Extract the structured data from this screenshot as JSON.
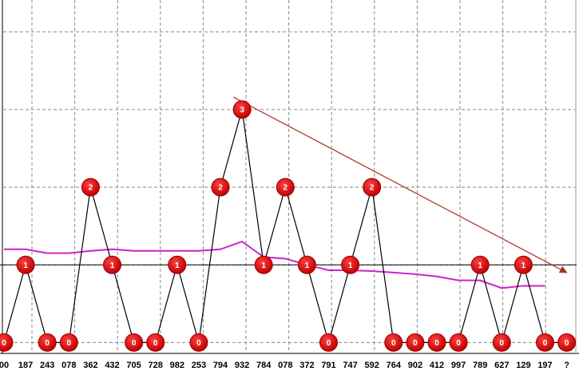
{
  "chart_data": {
    "type": "line",
    "categories": [
      "00",
      "187",
      "243",
      "078",
      "362",
      "432",
      "705",
      "728",
      "982",
      "253",
      "794",
      "932",
      "784",
      "078",
      "372",
      "791",
      "747",
      "592",
      "764",
      "902",
      "412",
      "997",
      "789",
      "627",
      "129",
      "197",
      "?"
    ],
    "ylim": [
      -0.12,
      4.41
    ],
    "yticks": [
      0,
      1,
      2,
      3,
      4
    ],
    "ytick_labels": false,
    "grid": true,
    "reference_line": 1,
    "series": [
      {
        "color": "#000000",
        "marker_color": "#e00000",
        "values": [
          0,
          1,
          0,
          0,
          2,
          1,
          0,
          0,
          1,
          0,
          2,
          3,
          1,
          2,
          1,
          0,
          1,
          2,
          0,
          0,
          0,
          0,
          1,
          0,
          1,
          0,
          0
        ]
      },
      {
        "color": "#cc22cc",
        "values": [
          1.2,
          1.2,
          1.15,
          1.15,
          1.18,
          1.2,
          1.18,
          1.18,
          1.18,
          1.18,
          1.2,
          1.3,
          1.1,
          1.08,
          1.0,
          0.93,
          0.93,
          0.92,
          0.9,
          0.88,
          0.85,
          0.8,
          0.8,
          0.7,
          0.73,
          0.73,
          null
        ]
      }
    ],
    "trendline": {
      "color": "#a83224",
      "x": [
        10.6,
        26
      ],
      "values": [
        3.16,
        0.9
      ]
    }
  }
}
